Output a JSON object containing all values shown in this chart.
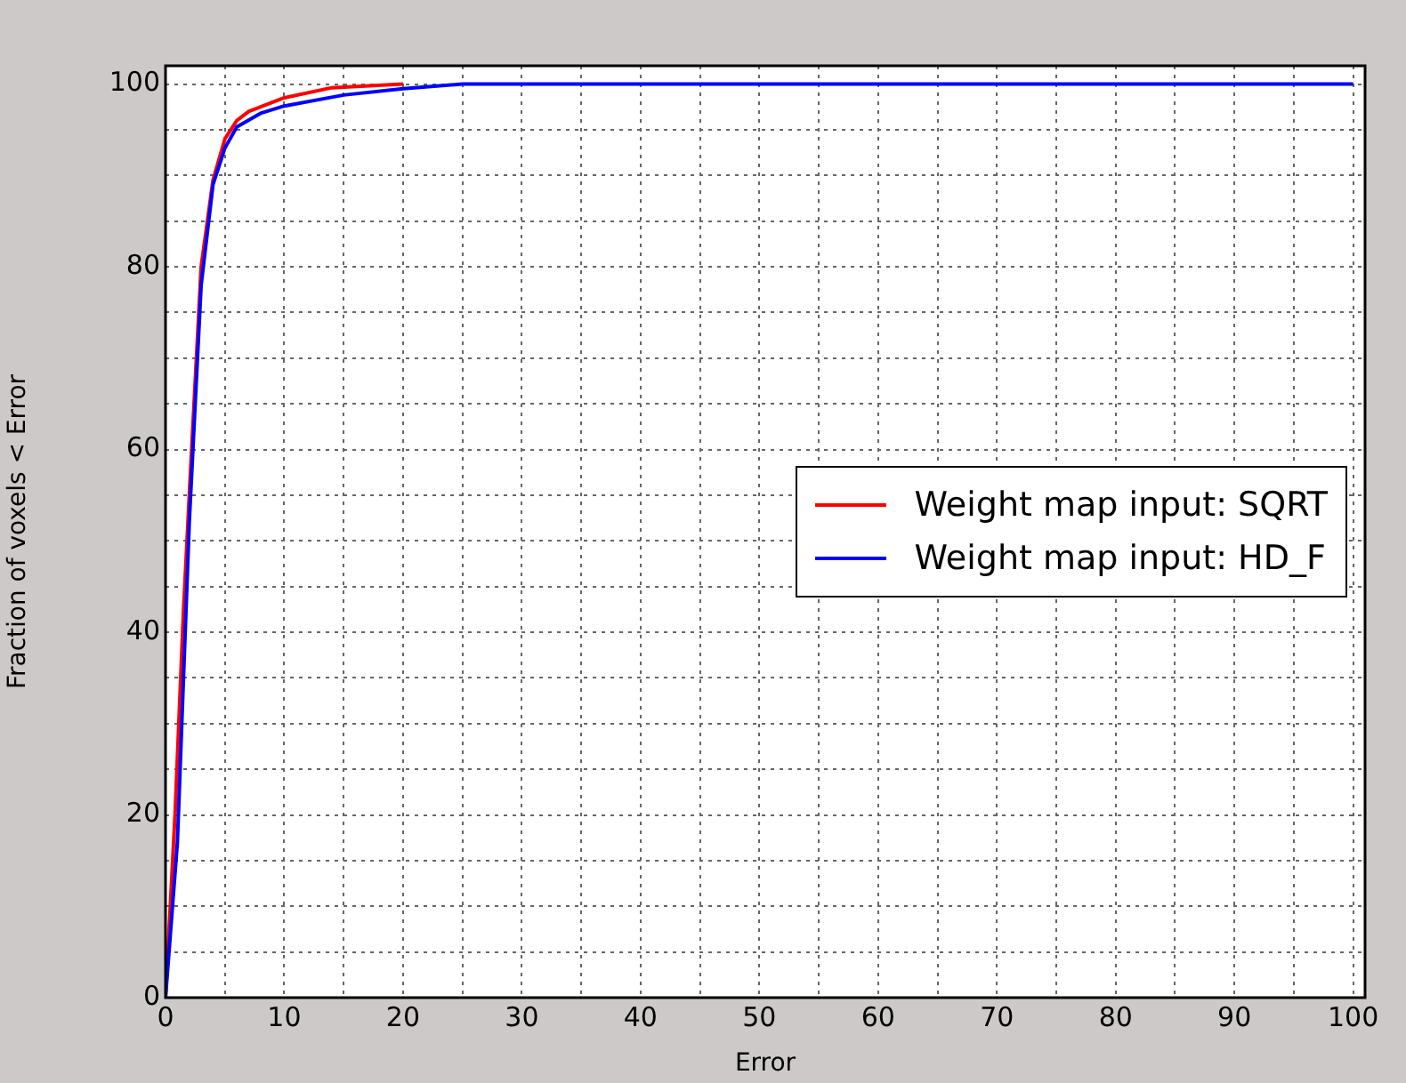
{
  "chart_data": {
    "type": "line",
    "xlabel": "Error",
    "ylabel": "Fraction of voxels < Error",
    "xlim": [
      0,
      101
    ],
    "ylim": [
      0,
      102
    ],
    "xticks": [
      0,
      {
        "value": 5,
        "label": null
      },
      10,
      {
        "value": 15,
        "label": null
      },
      20,
      {
        "value": 25,
        "label": null
      },
      30,
      {
        "value": 35,
        "label": null
      },
      40,
      {
        "value": 45,
        "label": null
      },
      50,
      {
        "value": 55,
        "label": null
      },
      60,
      {
        "value": 65,
        "label": null
      },
      70,
      {
        "value": 75,
        "label": null
      },
      80,
      {
        "value": 85,
        "label": null
      },
      90,
      {
        "value": 95,
        "label": null
      },
      100
    ],
    "yticks": [
      0,
      {
        "value": 5,
        "label": null
      },
      {
        "value": 10,
        "label": null
      },
      {
        "value": 15,
        "label": null
      },
      20,
      {
        "value": 25,
        "label": null
      },
      {
        "value": 30,
        "label": null
      },
      {
        "value": 35,
        "label": null
      },
      40,
      {
        "value": 45,
        "label": null
      },
      {
        "value": 50,
        "label": null
      },
      {
        "value": 55,
        "label": null
      },
      60,
      {
        "value": 65,
        "label": null
      },
      {
        "value": 70,
        "label": null
      },
      {
        "value": 75,
        "label": null
      },
      80,
      {
        "value": 85,
        "label": null
      },
      {
        "value": 90,
        "label": null
      },
      {
        "value": 95,
        "label": null
      },
      100
    ],
    "grid": true,
    "legend": "right",
    "line_style": "solid",
    "marker": "none",
    "series": [
      {
        "name": "Weight map input: SQRT",
        "color": "#ff0000",
        "x": [
          0,
          0.8,
          1.5,
          2,
          3,
          4,
          5,
          6,
          7,
          10,
          14,
          20
        ],
        "values": [
          0,
          20,
          42,
          55,
          80,
          89.5,
          94,
          96,
          97,
          98.5,
          99.6,
          100
        ]
      },
      {
        "name": "Weight map input: HD_F",
        "color": "#0000ff",
        "x": [
          0,
          1,
          2,
          3,
          4,
          5,
          6,
          8,
          10,
          15,
          20,
          25,
          30,
          100
        ],
        "values": [
          0,
          17,
          52,
          78,
          89,
          93,
          95.3,
          96.8,
          97.6,
          98.8,
          99.5,
          100,
          100,
          100
        ]
      }
    ]
  }
}
